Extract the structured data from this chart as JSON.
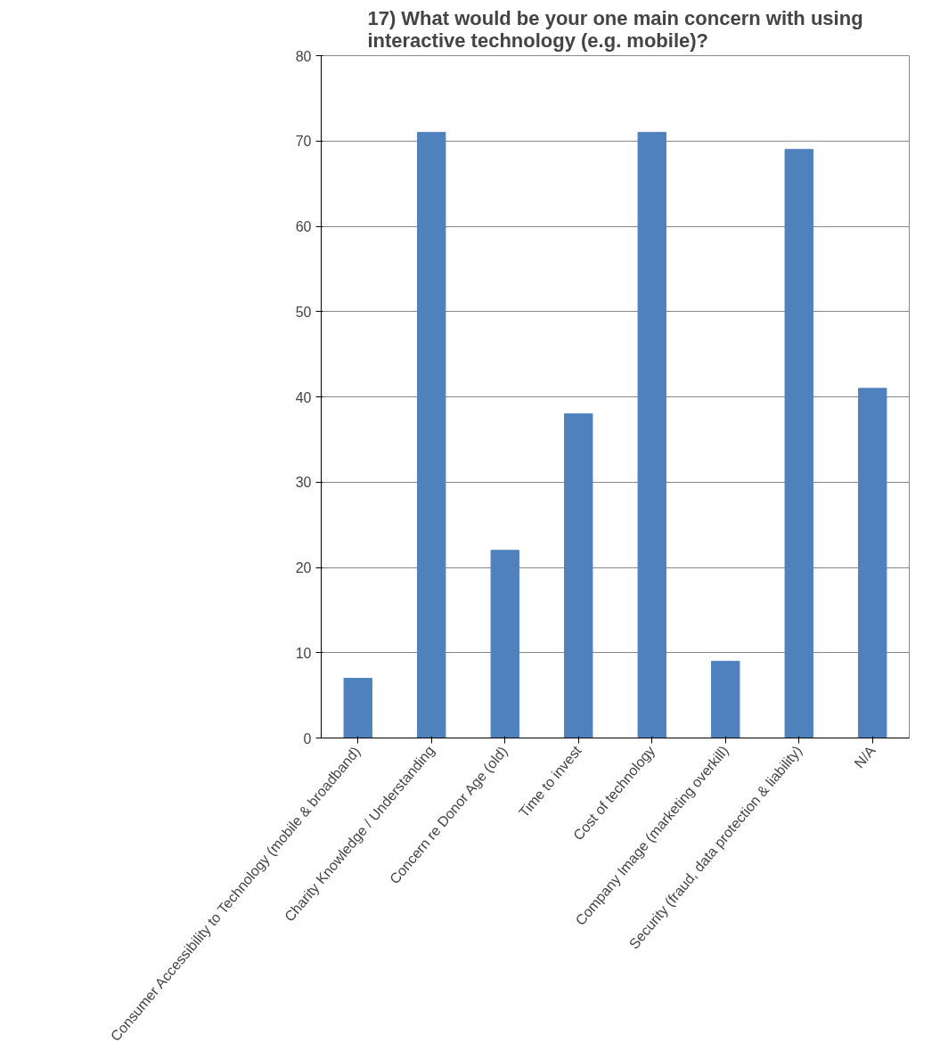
{
  "chart_data": {
    "type": "bar",
    "title": "17) What would be your one main concern with using interactive technology (e.g. mobile)?",
    "categories": [
      "Consumer Accessibility to Technology (mobile & broadband)",
      "Charity Knowledge / Understanding",
      "Concern re Donor Age (old)",
      "Time to invest",
      "Cost of technology",
      "Company Image (marketing overkill)",
      "Security (fraud, data protection & liability)",
      "N/A"
    ],
    "values": [
      7,
      71,
      22,
      38,
      71,
      9,
      69,
      41
    ],
    "color": "#4f81bd",
    "ylim": [
      0,
      80
    ],
    "yticks": [
      0,
      10,
      20,
      30,
      40,
      50,
      60,
      70,
      80
    ],
    "grid": "y"
  }
}
